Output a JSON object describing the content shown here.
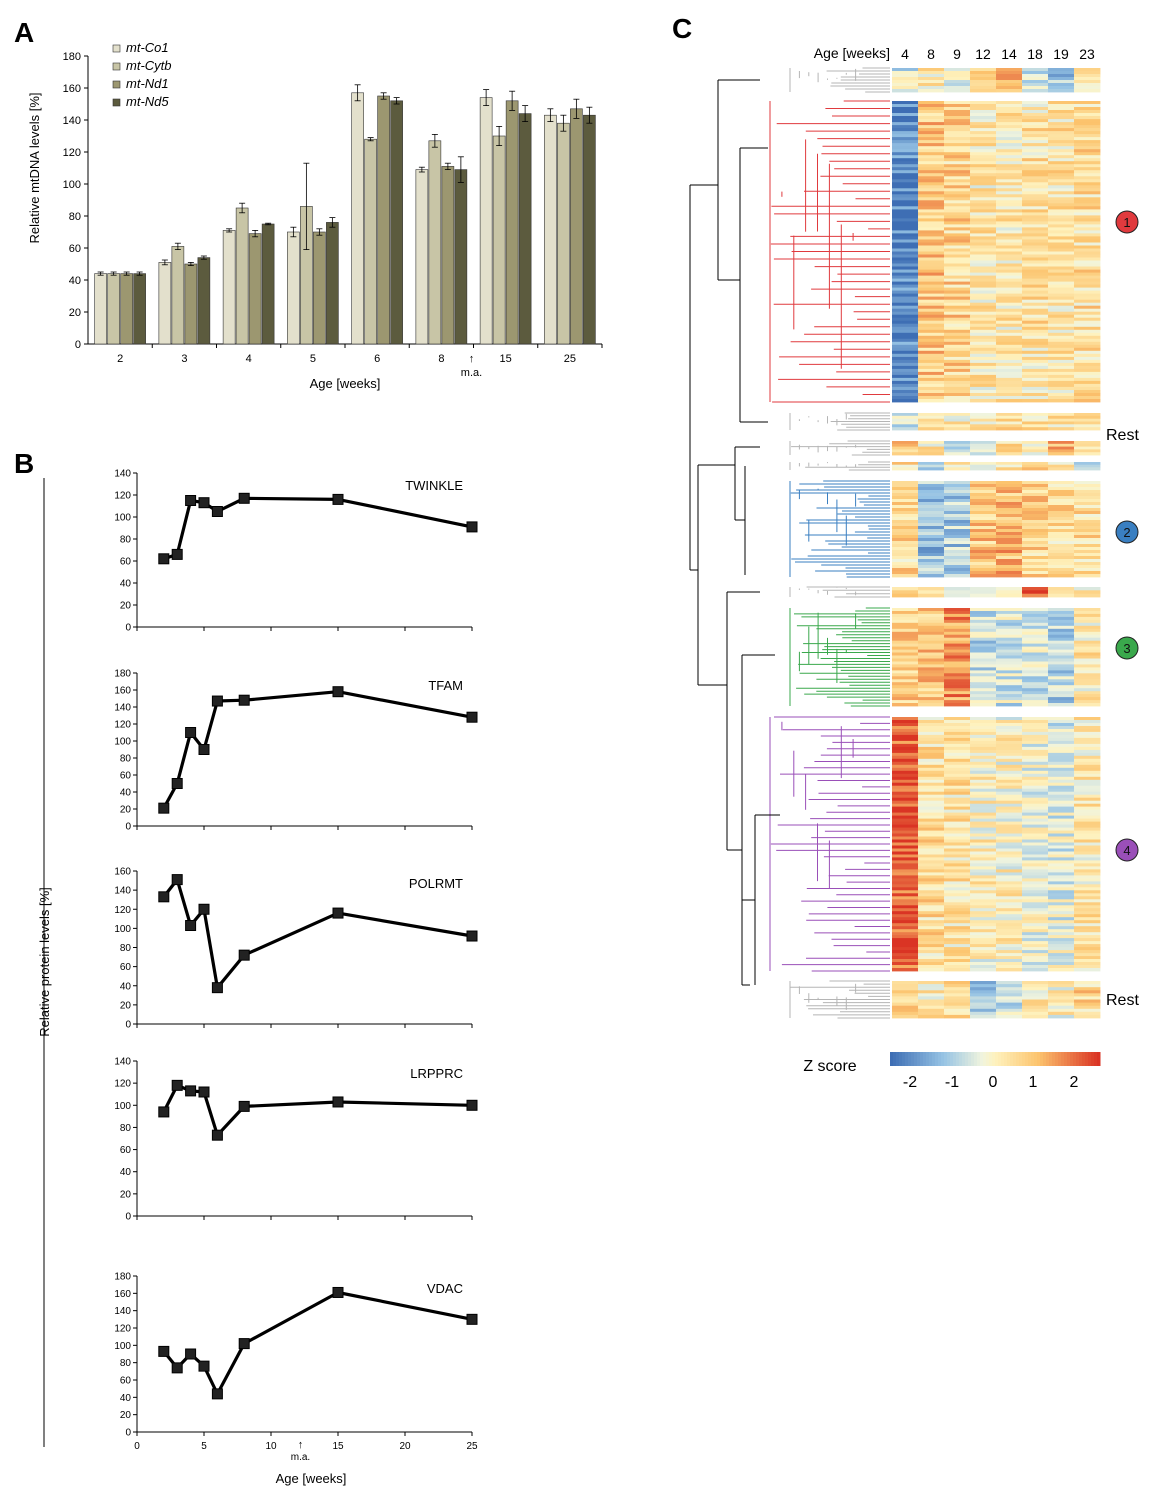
{
  "panels": {
    "a": "A",
    "b": "B",
    "c": "C"
  },
  "arrow_glyph": "↑",
  "chart_data": [
    {
      "id": "A",
      "type": "bar",
      "ylabel": "Relative mtDNA levels [%]",
      "xlabel": "Age [weeks]",
      "ylim": [
        0,
        180
      ],
      "yticks": [
        0,
        20,
        40,
        60,
        80,
        100,
        120,
        140,
        160,
        180
      ],
      "categories": [
        "2",
        "3",
        "4",
        "5",
        "6",
        "8",
        "15",
        "25"
      ],
      "annotation": "m.a.",
      "legend_position": "top-left",
      "series": [
        {
          "name": "mt-Co1",
          "color": "#e3e0cc",
          "values": [
            44,
            51,
            71,
            70,
            157,
            109,
            154,
            143
          ],
          "errors": [
            1,
            1.5,
            1,
            3,
            5,
            1.5,
            5,
            4
          ]
        },
        {
          "name": "mt-Cytb",
          "color": "#c8c5a6",
          "values": [
            44,
            61,
            85,
            86,
            128,
            127,
            130,
            138
          ],
          "errors": [
            1,
            2,
            3,
            27,
            1,
            4,
            6,
            5
          ]
        },
        {
          "name": "mt-Nd1",
          "color": "#9c9770",
          "values": [
            44,
            50,
            69,
            70,
            155,
            111,
            152,
            147
          ],
          "errors": [
            1,
            1,
            2,
            2,
            2,
            2,
            6,
            6
          ]
        },
        {
          "name": "mt-Nd5",
          "color": "#5c5b3e",
          "values": [
            44,
            54,
            75,
            76,
            152,
            109,
            144,
            143
          ],
          "errors": [
            1,
            1,
            0.5,
            3,
            2,
            8,
            5,
            5
          ]
        }
      ]
    },
    {
      "id": "B",
      "type": "line",
      "ylabel": "Relative protein levels [%]",
      "xlabel": "Age [weeks]",
      "xlim": [
        0,
        25
      ],
      "xticks": [
        0,
        5,
        10,
        15,
        20,
        25
      ],
      "annotation": "m.a.",
      "subplots": [
        {
          "title": "TWINKLE",
          "ylim": [
            0,
            140
          ],
          "yticks": [
            0,
            20,
            40,
            60,
            80,
            100,
            120,
            140
          ],
          "x": [
            2,
            3,
            4,
            5,
            6,
            8,
            15,
            25
          ],
          "y": [
            62,
            66,
            115,
            113,
            105,
            117,
            116,
            91
          ]
        },
        {
          "title": "TFAM",
          "ylim": [
            0,
            180
          ],
          "yticks": [
            0,
            20,
            40,
            60,
            80,
            100,
            120,
            140,
            160,
            180
          ],
          "x": [
            2,
            3,
            4,
            5,
            6,
            8,
            15,
            25
          ],
          "y": [
            21,
            50,
            110,
            90,
            147,
            148,
            158,
            128
          ]
        },
        {
          "title": "POLRMT",
          "ylim": [
            0,
            160
          ],
          "yticks": [
            0,
            20,
            40,
            60,
            80,
            100,
            120,
            140,
            160
          ],
          "x": [
            2,
            3,
            4,
            5,
            6,
            8,
            15,
            25
          ],
          "y": [
            133,
            151,
            103,
            120,
            38,
            72,
            116,
            92
          ]
        },
        {
          "title": "LRPPRC",
          "ylim": [
            0,
            140
          ],
          "yticks": [
            0,
            20,
            40,
            60,
            80,
            100,
            120,
            140
          ],
          "x": [
            2,
            3,
            4,
            5,
            6,
            8,
            15,
            25
          ],
          "y": [
            94,
            118,
            113,
            112,
            73,
            99,
            103,
            100
          ]
        },
        {
          "title": "VDAC",
          "ylim": [
            0,
            180
          ],
          "yticks": [
            0,
            20,
            40,
            60,
            80,
            100,
            120,
            140,
            160,
            180
          ],
          "x": [
            2,
            3,
            4,
            5,
            6,
            8,
            15,
            25
          ],
          "y": [
            93,
            74,
            90,
            76,
            44,
            102,
            161,
            130
          ]
        }
      ]
    },
    {
      "id": "C",
      "type": "heatmap",
      "column_header": "Age [weeks]",
      "columns": [
        "4",
        "8",
        "9",
        "12",
        "14",
        "18",
        "19",
        "23"
      ],
      "colorbar_label": "Z score",
      "colorbar_ticks": [
        "-2",
        "-1",
        "0",
        "1",
        "2"
      ],
      "clusters": [
        {
          "label": "1",
          "color": "#e03a3e",
          "rows": 100,
          "profile": [
            -2.0,
            0.8,
            0.6,
            0.2,
            0.2,
            0.3,
            0.3,
            0.4
          ]
        },
        {
          "label": "Rest",
          "color": "#b5b5b5",
          "rows": 14,
          "profile": [
            -0.6,
            0.1,
            0.1,
            0.3,
            0.4,
            0.4,
            0.3,
            0.5
          ]
        },
        {
          "label": "2",
          "color": "#3a7fc1",
          "rows": 30,
          "profile": [
            0.5,
            -1.2,
            -1.0,
            0.8,
            1.0,
            0.6,
            0.4,
            0.5
          ]
        },
        {
          "label": "3",
          "color": "#3aa84c",
          "rows": 30,
          "profile": [
            0.6,
            0.8,
            1.4,
            -0.8,
            -0.6,
            -0.6,
            -0.9,
            0.2
          ]
        },
        {
          "label": "4",
          "color": "#9a4fb8",
          "rows": 88,
          "profile": [
            2.0,
            0.4,
            0.3,
            0.0,
            0.0,
            -0.3,
            -0.4,
            0.2
          ]
        },
        {
          "label": "Rest",
          "color": "#b5b5b5",
          "rows": 10,
          "profile": [
            0.8,
            0.2,
            0.4,
            -1.0,
            -0.6,
            0.3,
            0.0,
            0.5
          ]
        }
      ]
    }
  ]
}
